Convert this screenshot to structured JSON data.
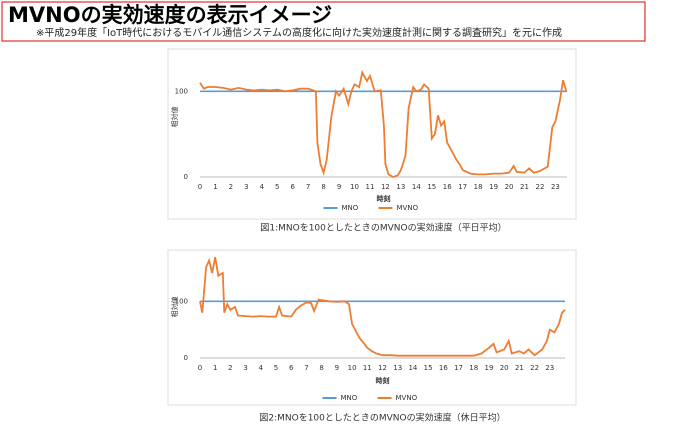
{
  "header": {
    "title": "MVNOの実効速度の表示イメージ",
    "note": "※平成29年度「IoT時代におけるモバイル通信システムの高度化に向けた実効速度計測に関する調査研究」を元に作成"
  },
  "chart_data": [
    {
      "type": "line",
      "caption": "図1:MNOを100としたときのMVNOの実効速度（平日平均）",
      "xlabel": "時刻",
      "ylabel": "相対値",
      "xlim": [
        0,
        23.75
      ],
      "ylim": [
        0,
        140
      ],
      "yticks": [
        0,
        100
      ],
      "xticks": [
        0,
        1,
        2,
        3,
        4,
        5,
        6,
        7,
        8,
        9,
        10,
        11,
        12,
        13,
        14,
        15,
        16,
        17,
        18,
        19,
        20,
        21,
        22,
        23
      ],
      "grid": false,
      "legend": "bottom",
      "series": [
        {
          "name": "MNO",
          "color": "#5b9bd5",
          "x": [
            0,
            23.75
          ],
          "values": [
            100,
            100
          ]
        },
        {
          "name": "MVNO",
          "color": "#ed7d31",
          "x": [
            0,
            0.25,
            0.5,
            1,
            1.5,
            2,
            2.5,
            3,
            3.5,
            4,
            4.5,
            5,
            5.5,
            6,
            6.5,
            7,
            7.5,
            7.6,
            7.8,
            8,
            8.2,
            8.5,
            8.8,
            9,
            9.3,
            9.6,
            9.8,
            10,
            10.3,
            10.5,
            10.8,
            11,
            11.3,
            11.7,
            11.9,
            12,
            12.2,
            12.5,
            12.8,
            13,
            13.3,
            13.5,
            13.8,
            14,
            14.3,
            14.5,
            14.8,
            15,
            15.2,
            15.4,
            15.6,
            15.8,
            16,
            16.3,
            16.6,
            16.8,
            17,
            17.5,
            18,
            18.5,
            19,
            19.5,
            20,
            20.3,
            20.5,
            21,
            21.3,
            21.6,
            22,
            22.5,
            22.8,
            23,
            23.3,
            23.5,
            23.7
          ],
          "values": [
            110,
            103,
            105,
            105,
            104,
            102,
            104,
            102,
            101,
            102,
            101,
            102,
            100,
            101,
            103,
            103,
            100,
            40,
            15,
            5,
            20,
            70,
            100,
            95,
            103,
            85,
            100,
            108,
            105,
            122,
            112,
            118,
            100,
            101,
            60,
            15,
            3,
            0,
            2,
            8,
            25,
            80,
            105,
            100,
            102,
            108,
            103,
            45,
            50,
            72,
            60,
            65,
            40,
            30,
            20,
            15,
            8,
            4,
            3,
            3,
            4,
            4,
            5,
            13,
            6,
            5,
            10,
            5,
            7,
            12,
            58,
            65,
            90,
            113,
            100
          ]
        }
      ]
    },
    {
      "type": "line",
      "caption": "図2:MNOを100としたときのMVNOの実効速度（休日平均）",
      "xlabel": "時刻",
      "ylabel": "相対値",
      "xlim": [
        0,
        24
      ],
      "ylim": [
        0,
        180
      ],
      "yticks": [
        0,
        100
      ],
      "xticks": [
        0,
        1,
        2,
        3,
        4,
        5,
        6,
        7,
        8,
        9,
        10,
        11,
        12,
        13,
        14,
        15,
        16,
        17,
        18,
        19,
        20,
        21,
        22,
        23
      ],
      "grid": false,
      "legend": "bottom",
      "series": [
        {
          "name": "MNO",
          "color": "#5b9bd5",
          "x": [
            0,
            24
          ],
          "values": [
            100,
            100
          ]
        },
        {
          "name": "MVNO",
          "color": "#ed7d31",
          "x": [
            0,
            0.15,
            0.4,
            0.6,
            0.8,
            1,
            1.2,
            1.5,
            1.6,
            1.8,
            2,
            2.3,
            2.5,
            3,
            3.5,
            4,
            4.5,
            5,
            5.2,
            5.4,
            6,
            6.3,
            6.6,
            7,
            7.3,
            7.5,
            7.8,
            8,
            8.5,
            9,
            9.5,
            9.8,
            10,
            10.3,
            10.5,
            10.8,
            11,
            11.3,
            11.6,
            12,
            12.5,
            13,
            14,
            15,
            16,
            17,
            18,
            18.5,
            19,
            19.3,
            19.5,
            20,
            20.3,
            20.5,
            21,
            21.3,
            21.6,
            22,
            22.5,
            22.8,
            23,
            23.3,
            23.6,
            23.8,
            24
          ],
          "values": [
            100,
            80,
            160,
            172,
            150,
            178,
            145,
            150,
            80,
            95,
            85,
            90,
            75,
            74,
            73,
            74,
            73,
            73,
            90,
            75,
            73,
            85,
            92,
            98,
            97,
            83,
            103,
            102,
            100,
            99,
            100,
            95,
            60,
            45,
            35,
            25,
            18,
            12,
            8,
            5,
            5,
            4,
            4,
            4,
            4,
            4,
            4,
            8,
            18,
            25,
            10,
            15,
            30,
            8,
            12,
            8,
            15,
            5,
            15,
            30,
            50,
            45,
            60,
            80,
            85
          ]
        }
      ]
    }
  ]
}
